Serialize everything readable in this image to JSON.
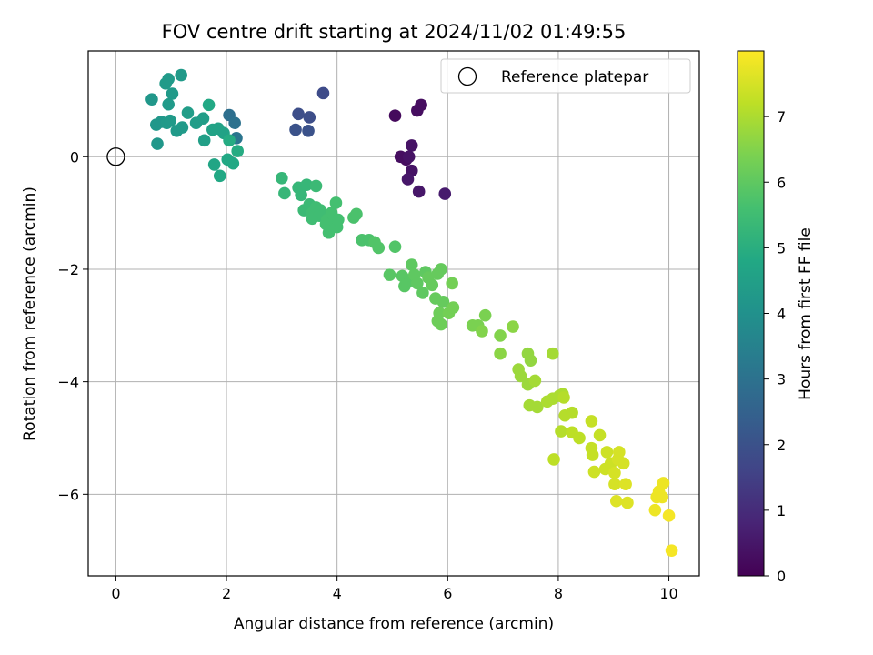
{
  "chart_data": {
    "type": "scatter",
    "title": "FOV centre drift starting at 2024/11/02 01:49:55",
    "xlabel": "Angular distance from reference (arcmin)",
    "ylabel": "Rotation from reference (arcmin)",
    "xlim": [
      -0.5,
      10.55
    ],
    "ylim": [
      -7.45,
      1.88
    ],
    "xticks": [
      "0",
      "2",
      "4",
      "6",
      "8",
      "10"
    ],
    "yticks": [
      "−6",
      "−4",
      "−2",
      "0"
    ],
    "grid": true,
    "legend": {
      "placement": "top-right",
      "entries": [
        "Reference platepar"
      ]
    },
    "reference_point": {
      "x": 0,
      "y": 0,
      "label": "Reference platepar"
    },
    "colorbar": {
      "label": "Hours from first FF file",
      "range": [
        0,
        8
      ],
      "ticks": [
        "0",
        "1",
        "2",
        "3",
        "4",
        "5",
        "6",
        "7"
      ],
      "colormap": "viridis"
    },
    "points": [
      [
        5.05,
        0.73,
        0.2
      ],
      [
        5.45,
        0.82,
        0.3
      ],
      [
        5.52,
        0.92,
        0.3
      ],
      [
        5.15,
        0.0,
        0.3
      ],
      [
        5.25,
        -0.05,
        0.3
      ],
      [
        5.35,
        0.2,
        0.4
      ],
      [
        5.3,
        0.0,
        0.4
      ],
      [
        5.35,
        -0.25,
        0.4
      ],
      [
        5.28,
        -0.4,
        0.5
      ],
      [
        5.48,
        -0.62,
        0.5
      ],
      [
        5.95,
        -0.66,
        0.6
      ],
      [
        3.75,
        1.13,
        1.8
      ],
      [
        3.3,
        0.76,
        1.9
      ],
      [
        3.5,
        0.7,
        1.9
      ],
      [
        3.25,
        0.48,
        2.0
      ],
      [
        3.48,
        0.46,
        2.0
      ],
      [
        2.05,
        0.74,
        2.9
      ],
      [
        2.15,
        0.6,
        3.0
      ],
      [
        2.18,
        0.33,
        3.1
      ],
      [
        0.65,
        1.02,
        4.2
      ],
      [
        0.9,
        1.3,
        4.3
      ],
      [
        0.95,
        1.38,
        4.3
      ],
      [
        1.18,
        1.45,
        4.3
      ],
      [
        1.02,
        1.12,
        4.3
      ],
      [
        0.95,
        0.93,
        4.3
      ],
      [
        0.73,
        0.57,
        4.2
      ],
      [
        0.82,
        0.62,
        4.2
      ],
      [
        0.92,
        0.6,
        4.3
      ],
      [
        0.98,
        0.64,
        4.3
      ],
      [
        1.1,
        0.46,
        4.3
      ],
      [
        1.2,
        0.52,
        4.3
      ],
      [
        0.75,
        0.23,
        4.2
      ],
      [
        1.3,
        0.78,
        4.4
      ],
      [
        1.45,
        0.6,
        4.4
      ],
      [
        1.58,
        0.68,
        4.4
      ],
      [
        1.6,
        0.29,
        4.5
      ],
      [
        1.75,
        0.48,
        4.6
      ],
      [
        1.85,
        0.5,
        4.6
      ],
      [
        1.95,
        0.42,
        4.6
      ],
      [
        1.78,
        -0.14,
        4.7
      ],
      [
        1.88,
        -0.34,
        4.8
      ],
      [
        2.02,
        -0.05,
        4.8
      ],
      [
        2.12,
        -0.12,
        4.8
      ],
      [
        2.2,
        0.1,
        4.9
      ],
      [
        2.05,
        0.29,
        4.9
      ],
      [
        1.68,
        0.92,
        4.8
      ],
      [
        3.0,
        -0.38,
        5.3
      ],
      [
        3.05,
        -0.65,
        5.3
      ],
      [
        3.3,
        -0.55,
        5.3
      ],
      [
        3.35,
        -0.68,
        5.3
      ],
      [
        3.45,
        -0.5,
        5.3
      ],
      [
        3.62,
        -0.52,
        5.4
      ],
      [
        3.4,
        -0.95,
        5.4
      ],
      [
        3.5,
        -0.85,
        5.4
      ],
      [
        3.55,
        -1.0,
        5.5
      ],
      [
        3.62,
        -0.9,
        5.5
      ],
      [
        3.7,
        -0.95,
        5.5
      ],
      [
        3.55,
        -1.1,
        5.5
      ],
      [
        3.68,
        -1.05,
        5.5
      ],
      [
        3.75,
        -1.05,
        5.5
      ],
      [
        3.82,
        -1.12,
        5.6
      ],
      [
        3.9,
        -1.0,
        5.6
      ],
      [
        3.8,
        -1.2,
        5.6
      ],
      [
        3.85,
        -1.35,
        5.6
      ],
      [
        3.95,
        -1.15,
        5.6
      ],
      [
        4.0,
        -1.25,
        5.6
      ],
      [
        4.02,
        -1.12,
        5.6
      ],
      [
        3.98,
        -0.82,
        5.6
      ],
      [
        4.3,
        -1.08,
        5.7
      ],
      [
        4.35,
        -1.02,
        5.7
      ],
      [
        4.45,
        -1.48,
        5.7
      ],
      [
        4.58,
        -1.48,
        5.7
      ],
      [
        4.68,
        -1.52,
        5.8
      ],
      [
        4.75,
        -1.62,
        5.8
      ],
      [
        5.05,
        -1.6,
        5.8
      ],
      [
        4.95,
        -2.1,
        5.9
      ],
      [
        5.18,
        -2.12,
        5.9
      ],
      [
        5.22,
        -2.3,
        5.9
      ],
      [
        5.32,
        -2.2,
        5.9
      ],
      [
        5.35,
        -1.92,
        6.0
      ],
      [
        5.4,
        -2.1,
        6.0
      ],
      [
        5.45,
        -2.25,
        6.0
      ],
      [
        5.55,
        -2.42,
        6.0
      ],
      [
        5.6,
        -2.05,
        6.0
      ],
      [
        5.65,
        -2.15,
        6.1
      ],
      [
        5.72,
        -2.28,
        6.1
      ],
      [
        5.82,
        -2.08,
        6.1
      ],
      [
        5.78,
        -2.52,
        6.1
      ],
      [
        5.88,
        -2.0,
        6.1
      ],
      [
        5.92,
        -2.58,
        6.1
      ],
      [
        5.82,
        -2.92,
        6.2
      ],
      [
        5.88,
        -2.98,
        6.2
      ],
      [
        5.85,
        -2.78,
        6.2
      ],
      [
        6.08,
        -2.25,
        6.3
      ],
      [
        6.02,
        -2.78,
        6.3
      ],
      [
        6.1,
        -2.68,
        6.3
      ],
      [
        6.68,
        -2.82,
        6.4
      ],
      [
        6.45,
        -3.0,
        6.4
      ],
      [
        6.55,
        -3.0,
        6.4
      ],
      [
        6.62,
        -3.1,
        6.5
      ],
      [
        6.95,
        -3.18,
        6.5
      ],
      [
        6.95,
        -3.5,
        6.6
      ],
      [
        7.18,
        -3.02,
        6.6
      ],
      [
        7.45,
        -3.5,
        6.7
      ],
      [
        7.5,
        -3.62,
        6.7
      ],
      [
        7.28,
        -3.78,
        6.8
      ],
      [
        7.32,
        -3.9,
        6.8
      ],
      [
        7.45,
        -4.05,
        6.8
      ],
      [
        7.58,
        -3.98,
        6.9
      ],
      [
        7.48,
        -4.42,
        6.9
      ],
      [
        7.62,
        -4.45,
        6.9
      ],
      [
        7.9,
        -3.5,
        6.9
      ],
      [
        7.8,
        -4.35,
        7.0
      ],
      [
        7.9,
        -4.3,
        7.0
      ],
      [
        8.02,
        -4.25,
        7.0
      ],
      [
        8.08,
        -4.22,
        7.0
      ],
      [
        8.1,
        -4.28,
        7.1
      ],
      [
        8.12,
        -4.6,
        7.1
      ],
      [
        8.25,
        -4.55,
        7.1
      ],
      [
        8.05,
        -4.88,
        7.1
      ],
      [
        8.25,
        -4.9,
        7.2
      ],
      [
        8.38,
        -5.0,
        7.2
      ],
      [
        7.92,
        -5.38,
        7.2
      ],
      [
        8.6,
        -4.7,
        7.3
      ],
      [
        8.6,
        -5.18,
        7.3
      ],
      [
        8.62,
        -5.3,
        7.3
      ],
      [
        8.75,
        -4.95,
        7.3
      ],
      [
        8.65,
        -5.6,
        7.4
      ],
      [
        8.85,
        -5.55,
        7.4
      ],
      [
        8.88,
        -5.25,
        7.4
      ],
      [
        8.95,
        -5.45,
        7.4
      ],
      [
        9.02,
        -5.62,
        7.5
      ],
      [
        9.08,
        -5.38,
        7.5
      ],
      [
        9.1,
        -5.25,
        7.5
      ],
      [
        9.18,
        -5.45,
        7.5
      ],
      [
        9.02,
        -5.82,
        7.5
      ],
      [
        9.22,
        -5.82,
        7.6
      ],
      [
        9.05,
        -6.12,
        7.6
      ],
      [
        9.25,
        -6.15,
        7.6
      ],
      [
        9.78,
        -6.05,
        7.8
      ],
      [
        9.82,
        -5.95,
        7.8
      ],
      [
        9.88,
        -6.05,
        7.8
      ],
      [
        9.75,
        -6.28,
        7.8
      ],
      [
        9.9,
        -5.8,
        7.8
      ],
      [
        10.0,
        -6.38,
        7.9
      ],
      [
        10.05,
        -7.0,
        7.9
      ]
    ]
  }
}
